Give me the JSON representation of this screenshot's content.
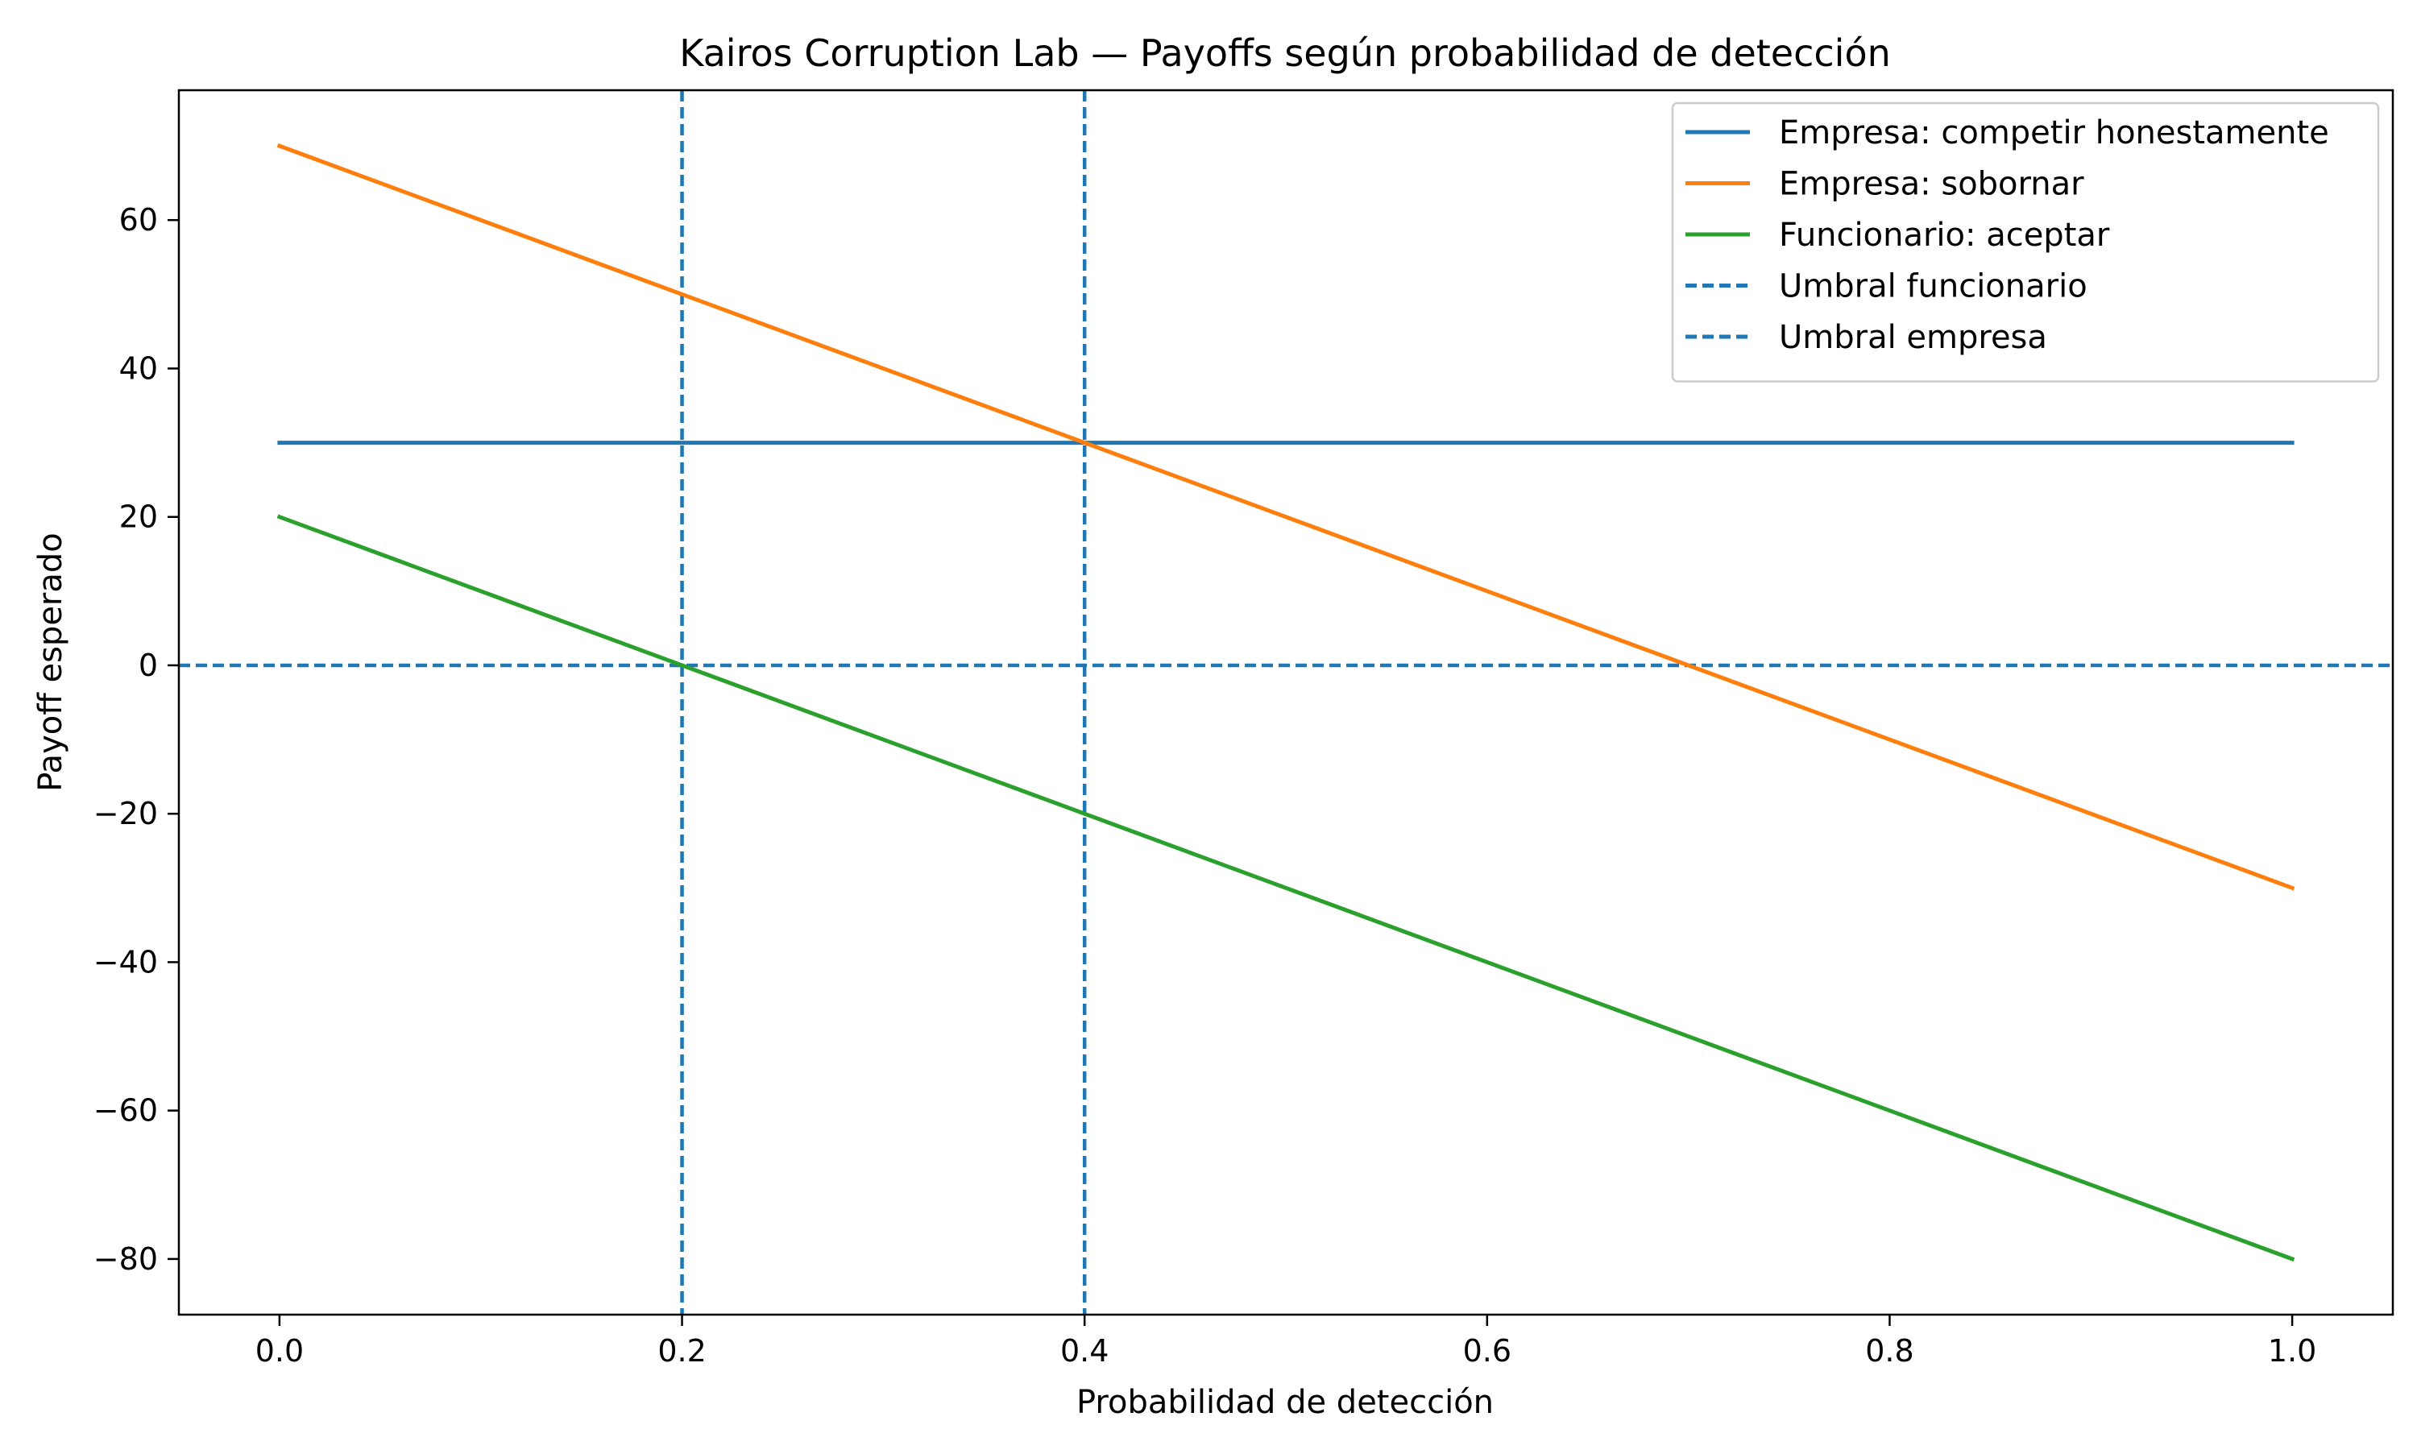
{
  "chart_data": {
    "type": "line",
    "title": "Kairos Corruption Lab — Payoffs según probabilidad de detección",
    "xlabel": "Probabilidad de detección",
    "ylabel": "Payoff esperado",
    "xlim": [
      -0.05,
      1.05
    ],
    "ylim": [
      -87.5,
      77.5
    ],
    "x_ticks": [
      0.0,
      0.2,
      0.4,
      0.6,
      0.8,
      1.0
    ],
    "x_tick_labels": [
      "0.0",
      "0.2",
      "0.4",
      "0.6",
      "0.8",
      "1.0"
    ],
    "y_ticks": [
      60,
      40,
      20,
      0,
      -20,
      -40,
      -60,
      -80
    ],
    "y_tick_labels": [
      "60",
      "40",
      "20",
      "0",
      "−20",
      "−40",
      "−60",
      "−80"
    ],
    "grid": false,
    "legend_position": "top-right",
    "series": [
      {
        "name": "Empresa: competir honestamente",
        "color": "#1f77b4",
        "style": "solid",
        "x": [
          0.0,
          1.0
        ],
        "y": [
          30,
          30
        ]
      },
      {
        "name": "Empresa: sobornar",
        "color": "#ff7f0e",
        "style": "solid",
        "x": [
          0.0,
          1.0
        ],
        "y": [
          70,
          -30
        ]
      },
      {
        "name": "Funcionario: aceptar",
        "color": "#2ca02c",
        "style": "solid",
        "x": [
          0.0,
          1.0
        ],
        "y": [
          20,
          -80
        ]
      }
    ],
    "reference_lines": [
      {
        "name": "Umbral funcionario",
        "orientation": "vertical",
        "value": 0.2,
        "color": "#1f77b4",
        "style": "dashed",
        "in_legend": true
      },
      {
        "name": "Umbral empresa",
        "orientation": "vertical",
        "value": 0.4,
        "color": "#1f77b4",
        "style": "dashed",
        "in_legend": true
      },
      {
        "orientation": "horizontal",
        "value": 0,
        "color": "#1f77b4",
        "style": "dashed",
        "in_legend": false
      }
    ]
  }
}
